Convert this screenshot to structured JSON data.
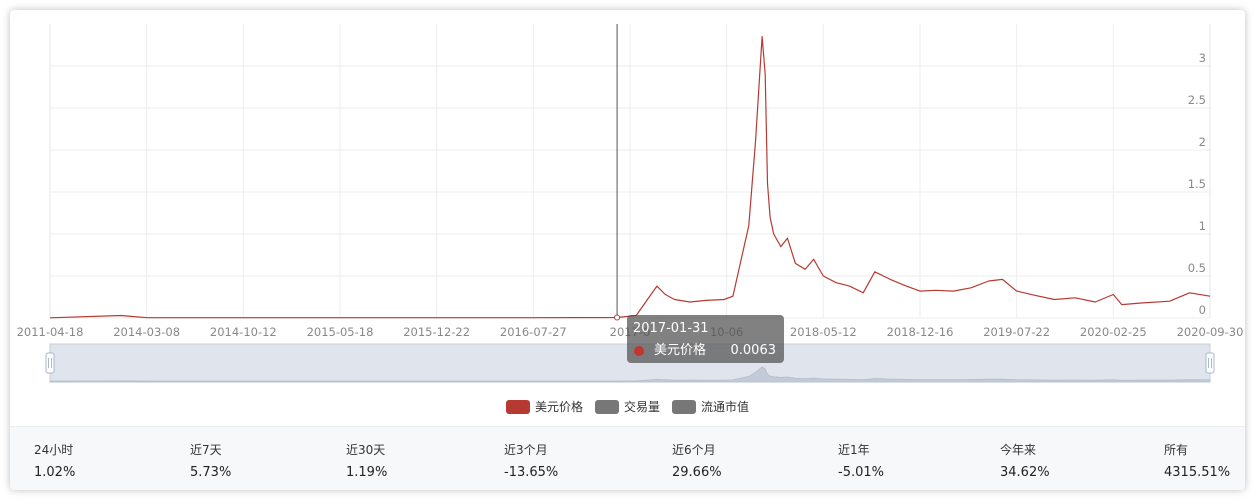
{
  "chart_data": {
    "type": "line",
    "x_tick_labels": [
      "2011-04-18",
      "2014-03-08",
      "2014-10-12",
      "2015-05-18",
      "2015-12-22",
      "2016-07-27",
      "2017-0",
      "10-06",
      "2018-05-12",
      "2018-12-16",
      "2019-07-22",
      "2020-02-25",
      "2020-09-30"
    ],
    "y_tick_labels": [
      "0",
      "0.5",
      "1",
      "1.5",
      "2",
      "2.5",
      "3"
    ],
    "ylim": [
      0,
      3.5
    ],
    "grid": true,
    "legend_position": "bottom",
    "series": [
      {
        "name": "美元价格",
        "color": "#b73a32",
        "x": [
          "2011-04-18",
          "2013-06-01",
          "2014-03-08",
          "2014-10-12",
          "2015-05-18",
          "2015-12-22",
          "2016-07-27",
          "2017-01-31",
          "2017-03-15",
          "2017-05-01",
          "2017-05-20",
          "2017-06-10",
          "2017-07-15",
          "2017-08-20",
          "2017-09-30",
          "2017-10-20",
          "2017-11-25",
          "2017-12-10",
          "2017-12-25",
          "2018-01-01",
          "2018-01-06",
          "2018-01-12",
          "2018-01-20",
          "2018-02-05",
          "2018-02-20",
          "2018-03-10",
          "2018-04-01",
          "2018-04-20",
          "2018-05-12",
          "2018-06-10",
          "2018-07-10",
          "2018-08-10",
          "2018-09-05",
          "2018-10-10",
          "2018-11-15",
          "2018-12-16",
          "2019-01-20",
          "2019-03-01",
          "2019-04-10",
          "2019-05-20",
          "2019-06-20",
          "2019-07-22",
          "2019-09-01",
          "2019-10-15",
          "2019-12-01",
          "2020-01-15",
          "2020-02-25",
          "2020-03-15",
          "2020-05-01",
          "2020-07-01",
          "2020-08-15",
          "2020-09-30"
        ],
        "values": [
          0.002,
          0.03,
          0.003,
          0.004,
          0.004,
          0.004,
          0.004,
          0.0063,
          0.03,
          0.38,
          0.28,
          0.22,
          0.19,
          0.21,
          0.22,
          0.26,
          1.1,
          2.1,
          3.35,
          2.9,
          1.6,
          1.2,
          1.0,
          0.85,
          0.95,
          0.65,
          0.58,
          0.7,
          0.5,
          0.42,
          0.38,
          0.3,
          0.55,
          0.46,
          0.38,
          0.32,
          0.33,
          0.32,
          0.36,
          0.44,
          0.46,
          0.32,
          0.27,
          0.22,
          0.24,
          0.19,
          0.28,
          0.16,
          0.18,
          0.2,
          0.3,
          0.26
        ]
      }
    ],
    "legend": [
      {
        "name": "美元价格",
        "color": "#b73a32"
      },
      {
        "name": "交易量",
        "color": "#777777"
      },
      {
        "name": "流通市值",
        "color": "#777777"
      }
    ],
    "tooltip": {
      "date": "2017-01-31",
      "series": "美元价格",
      "value": "0.0063",
      "color": "#c23531"
    }
  },
  "stats": [
    {
      "label": "24小时",
      "value": "1.02%"
    },
    {
      "label": "近7天",
      "value": "5.73%"
    },
    {
      "label": "近30天",
      "value": "1.19%"
    },
    {
      "label": "近3个月",
      "value": "-13.65%"
    },
    {
      "label": "近6个月",
      "value": "29.66%"
    },
    {
      "label": "近1年",
      "value": "-5.01%"
    },
    {
      "label": "今年来",
      "value": "34.62%"
    },
    {
      "label": "所有",
      "value": "4315.51%"
    }
  ]
}
